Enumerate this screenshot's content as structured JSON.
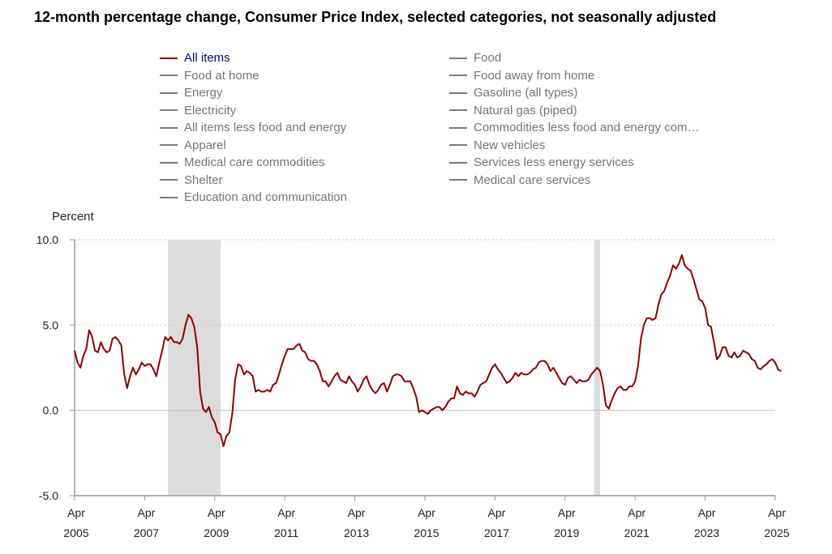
{
  "title": "12-month percentage change, Consumer Price Index, selected categories, not seasonally adjusted",
  "legend": {
    "col1": [
      "All items",
      "Food at home",
      "Energy",
      "Electricity",
      "All items less food and energy",
      "Apparel",
      "Medical care commodities",
      "Shelter",
      "Education and communication"
    ],
    "col2": [
      "Food",
      "Food away from home",
      "Gasoline (all types)",
      "Natural gas (piped)",
      "Commodities less food and energy com…",
      "New vehicles",
      "Services less energy services",
      "Medical care services"
    ]
  },
  "colors": {
    "series": "#8b0000",
    "recession": "#dcdcdc",
    "axis": "#9a9a9a",
    "legend_active_text": "#000e6e"
  },
  "chart_data": {
    "type": "line",
    "ylabel": "Percent",
    "ylim": [
      -5,
      10
    ],
    "yticks": [
      "10.0",
      "5.0",
      "0.0",
      "-5.0"
    ],
    "xticks": [
      {
        "month": "Apr",
        "year": "2005"
      },
      {
        "month": "Apr",
        "year": "2007"
      },
      {
        "month": "Apr",
        "year": "2009"
      },
      {
        "month": "Apr",
        "year": "2011"
      },
      {
        "month": "Apr",
        "year": "2013"
      },
      {
        "month": "Apr",
        "year": "2015"
      },
      {
        "month": "Apr",
        "year": "2017"
      },
      {
        "month": "Apr",
        "year": "2019"
      },
      {
        "month": "Apr",
        "year": "2021"
      },
      {
        "month": "Apr",
        "year": "2023"
      },
      {
        "month": "Apr",
        "year": "2025"
      }
    ],
    "recessions": [
      {
        "start": "Dec 2007",
        "end": "Jun 2009"
      },
      {
        "start": "Feb 2020",
        "end": "Apr 2020"
      }
    ],
    "series": [
      {
        "name": "All items",
        "start": "Apr 2005",
        "frequency": "monthly",
        "values": [
          3.5,
          2.8,
          2.5,
          3.2,
          3.6,
          4.7,
          4.3,
          3.5,
          3.4,
          4.0,
          3.6,
          3.4,
          3.5,
          4.2,
          4.3,
          4.1,
          3.8,
          2.1,
          1.3,
          2.0,
          2.5,
          2.1,
          2.4,
          2.8,
          2.6,
          2.7,
          2.7,
          2.4,
          2.0,
          2.8,
          3.5,
          4.3,
          4.1,
          4.3,
          4.0,
          4.0,
          3.9,
          4.2,
          5.0,
          5.6,
          5.4,
          4.9,
          3.7,
          1.1,
          0.1,
          -0.1,
          0.2,
          -0.4,
          -0.7,
          -1.3,
          -1.4,
          -2.1,
          -1.5,
          -1.3,
          -0.2,
          1.8,
          2.7,
          2.6,
          2.1,
          2.3,
          2.2,
          2.0,
          1.1,
          1.2,
          1.1,
          1.1,
          1.2,
          1.1,
          1.5,
          1.6,
          2.1,
          2.7,
          3.2,
          3.6,
          3.6,
          3.6,
          3.8,
          3.9,
          3.5,
          3.4,
          3.0,
          2.9,
          2.9,
          2.7,
          2.3,
          1.7,
          1.7,
          1.4,
          1.7,
          2.0,
          2.2,
          1.8,
          1.7,
          1.6,
          2.0,
          1.7,
          1.5,
          1.1,
          1.4,
          1.8,
          2.0,
          1.5,
          1.2,
          1.0,
          1.2,
          1.5,
          1.6,
          1.1,
          1.5,
          2.0,
          2.1,
          2.1,
          2.0,
          1.7,
          1.7,
          1.7,
          1.3,
          0.8,
          -0.1,
          0.0,
          -0.1,
          -0.2,
          0.0,
          0.1,
          0.2,
          0.2,
          0.0,
          0.2,
          0.5,
          0.7,
          0.7,
          1.4,
          1.0,
          0.9,
          1.1,
          1.0,
          1.0,
          0.8,
          1.1,
          1.5,
          1.6,
          1.7,
          2.1,
          2.5,
          2.7,
          2.4,
          2.2,
          1.9,
          1.6,
          1.7,
          1.9,
          2.2,
          2.0,
          2.2,
          2.1,
          2.1,
          2.2,
          2.4,
          2.5,
          2.8,
          2.9,
          2.9,
          2.7,
          2.3,
          2.5,
          2.2,
          1.9,
          1.6,
          1.5,
          1.9,
          2.0,
          1.8,
          1.6,
          1.8,
          1.7,
          1.7,
          1.8,
          2.1,
          2.3,
          2.5,
          2.3,
          1.5,
          0.3,
          0.1,
          0.6,
          1.0,
          1.3,
          1.4,
          1.2,
          1.2,
          1.4,
          1.4,
          1.7,
          2.6,
          4.2,
          5.0,
          5.4,
          5.4,
          5.3,
          5.4,
          6.2,
          6.8,
          7.0,
          7.5,
          7.9,
          8.5,
          8.3,
          8.6,
          9.1,
          8.5,
          8.3,
          8.2,
          7.7,
          7.1,
          6.5,
          6.4,
          6.0,
          5.0,
          4.9,
          4.0,
          3.0,
          3.2,
          3.7,
          3.7,
          3.2,
          3.1,
          3.4,
          3.1,
          3.2,
          3.5,
          3.4,
          3.3,
          3.0,
          2.9,
          2.5,
          2.4,
          2.6,
          2.7,
          2.9,
          3.0,
          2.8,
          2.4,
          2.3
        ]
      }
    ]
  }
}
